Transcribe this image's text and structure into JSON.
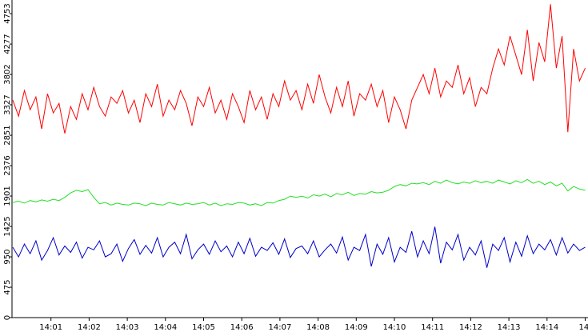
{
  "chart_data": {
    "type": "line",
    "xticks": [
      "14:01",
      "14:02",
      "14:03",
      "14:04",
      "14:05",
      "14:06",
      "14:07",
      "14:08",
      "14:09",
      "14:10",
      "14:11",
      "14:12",
      "14:13",
      "14:14",
      "14:"
    ],
    "ylim": [
      0,
      4966
    ],
    "yticks": [
      0,
      475,
      950,
      1425,
      1901,
      2376,
      2851,
      3327,
      3802,
      4277,
      4753
    ],
    "series": [
      {
        "color": "#ff0000",
        "values": [
          3400,
          3150,
          3550,
          3250,
          3450,
          2950,
          3500,
          3200,
          3350,
          2880,
          3300,
          3100,
          3500,
          3250,
          3600,
          3300,
          3150,
          3450,
          3350,
          3550,
          3200,
          3400,
          3050,
          3500,
          3300,
          3650,
          3150,
          3400,
          3250,
          3550,
          3350,
          3000,
          3450,
          3300,
          3600,
          3200,
          3400,
          3100,
          3500,
          3300,
          3050,
          3550,
          3250,
          3450,
          3100,
          3500,
          3300,
          3700,
          3400,
          3550,
          3250,
          3650,
          3350,
          3800,
          3450,
          3200,
          3600,
          3300,
          3700,
          3150,
          3500,
          3400,
          3650,
          3300,
          3550,
          3050,
          3450,
          3250,
          2950,
          3400,
          3600,
          3800,
          3500,
          3900,
          3450,
          3700,
          3600,
          3950,
          3500,
          3750,
          3300,
          3600,
          3500,
          3900,
          4200,
          3950,
          4400,
          4100,
          3800,
          4500,
          3700,
          4300,
          4000,
          4900,
          3900,
          4400,
          2900,
          4200,
          3700,
          3900
        ]
      },
      {
        "color": "#22e022",
        "values": [
          1800,
          1820,
          1790,
          1830,
          1810,
          1840,
          1820,
          1850,
          1830,
          1880,
          1950,
          1990,
          1970,
          2000,
          1880,
          1780,
          1800,
          1760,
          1790,
          1770,
          1760,
          1790,
          1780,
          1750,
          1790,
          1770,
          1760,
          1800,
          1780,
          1760,
          1790,
          1770,
          1780,
          1800,
          1760,
          1790,
          1750,
          1780,
          1770,
          1800,
          1790,
          1760,
          1780,
          1750,
          1800,
          1790,
          1830,
          1850,
          1900,
          1880,
          1900,
          1870,
          1920,
          1900,
          1930,
          1890,
          1940,
          1920,
          1960,
          1910,
          1940,
          1930,
          1970,
          1950,
          1960,
          1990,
          2050,
          2080,
          2060,
          2100,
          2090,
          2110,
          2080,
          2130,
          2100,
          2150,
          2110,
          2090,
          2120,
          2100,
          2140,
          2110,
          2130,
          2100,
          2150,
          2120,
          2090,
          2140,
          2110,
          2160,
          2100,
          2130,
          2080,
          2120,
          2060,
          2100,
          1980,
          2050,
          2010,
          1990
        ]
      },
      {
        "color": "#0000cc",
        "values": [
          1100,
          950,
          1150,
          1000,
          1200,
          900,
          1050,
          1250,
          980,
          1120,
          1020,
          1180,
          930,
          1100,
          1060,
          1200,
          950,
          1000,
          1150,
          880,
          1080,
          1220,
          990,
          1130,
          1010,
          1250,
          950,
          1100,
          1180,
          1000,
          1300,
          920,
          1060,
          1150,
          990,
          1200,
          1030,
          1120,
          950,
          1180,
          1000,
          1240,
          960,
          1100,
          1050,
          1170,
          990,
          1230,
          940,
          1080,
          1120,
          1000,
          1200,
          950,
          1060,
          1150,
          1010,
          1260,
          900,
          1100,
          1050,
          1300,
          800,
          1150,
          990,
          1250,
          870,
          1100,
          1020,
          1350,
          950,
          1200,
          1000,
          1420,
          850,
          1180,
          1060,
          1300,
          900,
          1100,
          980,
          1200,
          780,
          1150,
          1050,
          1250,
          870,
          1180,
          960,
          1280,
          1000,
          1150,
          1060,
          1220,
          980,
          1250,
          1010,
          1150,
          1050,
          1100
        ]
      }
    ]
  }
}
